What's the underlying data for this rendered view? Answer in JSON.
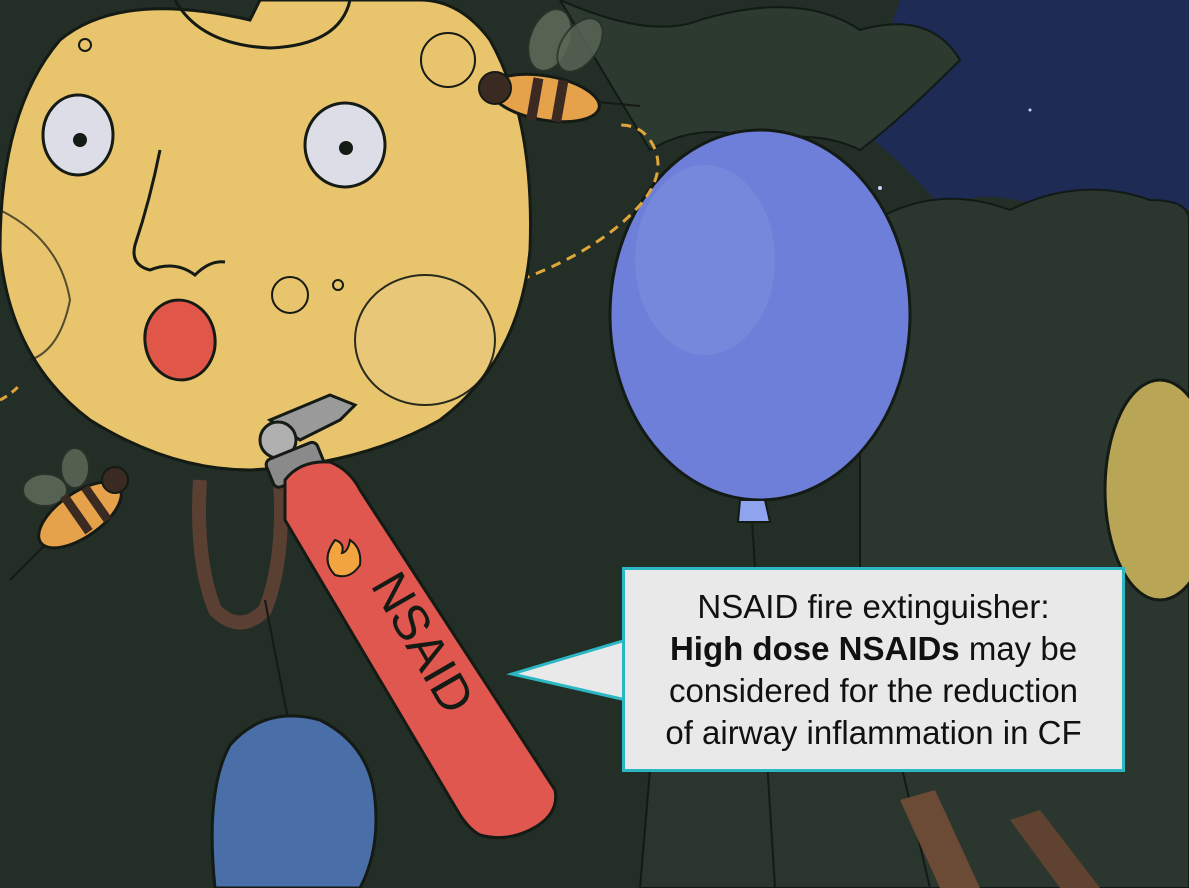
{
  "extinguisher": {
    "label": "NSAID"
  },
  "callout": {
    "line1": "NSAID fire extinguisher:",
    "line2_bold": "High dose NSAIDs",
    "line2_rest": " may be",
    "line3": "considered for the reduction",
    "line4": "of airway inflammation in CF"
  },
  "colors": {
    "background_foliage": "#24322a",
    "night_sky": "#1b2a52",
    "yellow_balloon": "#e6c36a",
    "blue_balloon": "#6f7fd6",
    "extinguisher_red": "#e0574f",
    "callout_border": "#2bb8c4",
    "callout_fill": "#e9e9e9"
  }
}
